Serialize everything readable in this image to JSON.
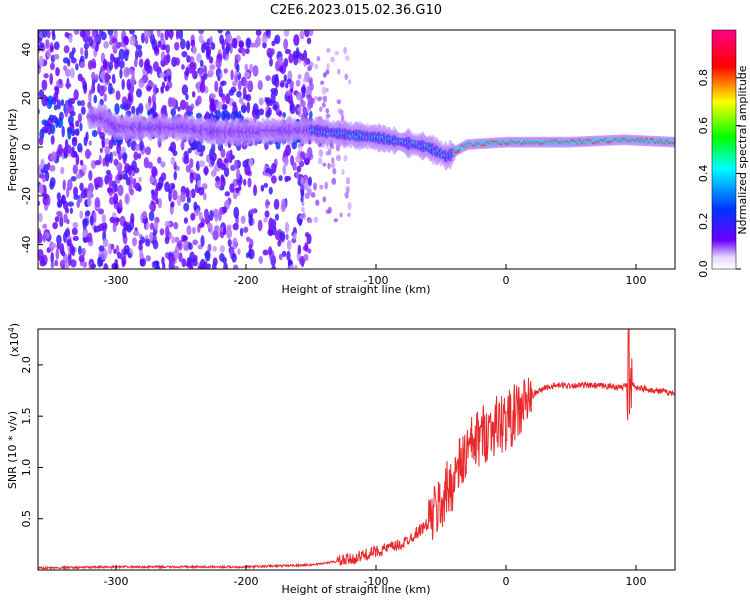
{
  "title": "C2E6.2023.015.02.36.G10",
  "chart_data": [
    {
      "type": "heatmap",
      "xlabel": "Height of straight line (km)",
      "ylabel": "Frequency (Hz)",
      "xlim": [
        -360,
        130
      ],
      "ylim": [
        -50,
        48
      ],
      "x_ticks": [
        -300,
        -200,
        -100,
        0,
        100
      ],
      "y_ticks": [
        -40,
        -20,
        0,
        20,
        40
      ],
      "colorbar": {
        "label": "Normalized spectral amplitude",
        "range": [
          0,
          1
        ],
        "ticks": [
          "0.0",
          "0.2",
          "0.4",
          "0.6",
          "0.8"
        ],
        "colors": [
          "#ffffff",
          "#6a00ff",
          "#0033ff",
          "#00ffff",
          "#00ff00",
          "#ffff00",
          "#ff0000",
          "#ff0088"
        ]
      },
      "ridge": [
        {
          "x": -310,
          "y": 12
        },
        {
          "x": -300,
          "y": 8
        },
        {
          "x": -250,
          "y": 8
        },
        {
          "x": -220,
          "y": 6
        },
        {
          "x": -150,
          "y": 7
        },
        {
          "x": -120,
          "y": 5
        },
        {
          "x": -100,
          "y": 4
        },
        {
          "x": -80,
          "y": 2
        },
        {
          "x": -60,
          "y": 0
        },
        {
          "x": -45,
          "y": -4
        },
        {
          "x": -40,
          "y": -2
        },
        {
          "x": -30,
          "y": 1
        },
        {
          "x": 0,
          "y": 2
        },
        {
          "x": 50,
          "y": 2
        },
        {
          "x": 90,
          "y": 3
        },
        {
          "x": 130,
          "y": 2
        }
      ]
    },
    {
      "type": "line",
      "xlabel": "Height of straight line (km)",
      "ylabel": "SNR (10 * v/v)",
      "exponent_label": "(x10",
      "exponent_power": "4",
      "exponent_close": ")",
      "xlim": [
        -360,
        130
      ],
      "ylim": [
        0,
        2.35
      ],
      "x_ticks": [
        -300,
        -200,
        -100,
        0,
        100
      ],
      "y_ticks": [
        "0.5",
        "1.0",
        "1.5",
        "2.0"
      ],
      "color": "#e8282a",
      "series": [
        {
          "x": [
            -360,
            -300,
            -200,
            -150,
            -120,
            -100,
            -80,
            -60,
            -50,
            -40,
            -30,
            -20,
            -10,
            0,
            10,
            20,
            30,
            40,
            60,
            80,
            90,
            95,
            100,
            110,
            130
          ],
          "y": [
            0.02,
            0.03,
            0.03,
            0.05,
            0.1,
            0.18,
            0.25,
            0.45,
            0.65,
            0.9,
            1.15,
            1.3,
            1.4,
            1.45,
            1.55,
            1.7,
            1.78,
            1.8,
            1.8,
            1.79,
            1.78,
            1.85,
            1.78,
            1.76,
            1.72
          ]
        }
      ]
    }
  ]
}
